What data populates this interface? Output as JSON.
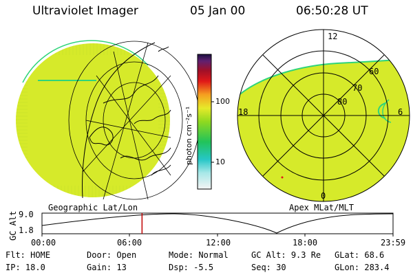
{
  "header": {
    "title": "Ultraviolet Imager",
    "date": "05 Jan 00",
    "time": "06:50:28 UT"
  },
  "left_panel": {
    "caption": "Geographic Lat/Lon"
  },
  "right_panel": {
    "caption": "Apex MLat/MLT",
    "mlt_labels": {
      "top": "12",
      "left": "18",
      "right": "6",
      "bottom": "0"
    },
    "lat_labels": [
      "60",
      "70",
      "80"
    ]
  },
  "colorbar": {
    "unit_label": "photon cm⁻²s⁻¹",
    "ticks": [
      "100",
      "10"
    ]
  },
  "altitude_plot": {
    "ylabel": "GC Alt",
    "yticks": [
      "9.0",
      "1.8"
    ],
    "xticks": [
      "00:00",
      "06:00",
      "12:00",
      "18:00",
      "23:59"
    ],
    "current_time_fraction": 0.285
  },
  "status": {
    "row1": [
      {
        "label": "Flt:",
        "value": "HOME"
      },
      {
        "label": "Door:",
        "value": "Open"
      },
      {
        "label": "Mode:",
        "value": "Normal"
      },
      {
        "label": "GC Alt:",
        "value": "9.3 Re"
      },
      {
        "label": "GLat:",
        "value": "68.6"
      }
    ],
    "row2": [
      {
        "label": "IP:",
        "value": "18.0"
      },
      {
        "label": "Gain:",
        "value": "13"
      },
      {
        "label": "Dsp:",
        "value": "-5.5"
      },
      {
        "label": "Seq:",
        "value": "30"
      },
      {
        "label": "GLon:",
        "value": "283.4"
      }
    ]
  },
  "colors": {
    "image_fill": "#d6ea2a",
    "image_edge": "#2fd47a",
    "marker_line": "#c00000"
  }
}
